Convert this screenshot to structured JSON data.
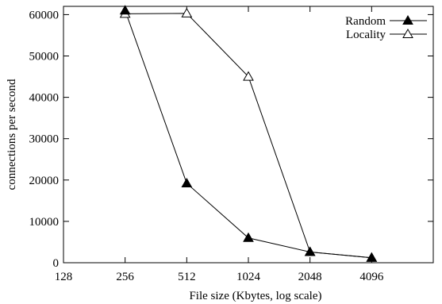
{
  "chart_data": {
    "type": "line",
    "title": "",
    "xlabel": "File size (Kbytes, log scale)",
    "ylabel": "connections per second",
    "x_scale": "log2",
    "xlim": [
      128,
      8192
    ],
    "ylim": [
      0,
      62000
    ],
    "x_ticks": [
      128,
      256,
      512,
      1024,
      2048,
      4096
    ],
    "x_tick_labels": [
      "128",
      "256",
      "512",
      "1024",
      "2048",
      "4096"
    ],
    "y_ticks": [
      0,
      10000,
      20000,
      30000,
      40000,
      50000,
      60000
    ],
    "y_tick_labels": [
      "0",
      "10000",
      "20000",
      "30000",
      "40000",
      "50000",
      "60000"
    ],
    "grid": false,
    "legend_position": "top-right",
    "series": [
      {
        "name": "Random",
        "marker": "filled-triangle",
        "color": "#000000",
        "x": [
          256,
          512,
          1024,
          2048,
          4096
        ],
        "y": [
          61000,
          19200,
          6000,
          2600,
          1200
        ]
      },
      {
        "name": "Locality",
        "marker": "open-triangle",
        "color": "#000000",
        "x": [
          256,
          512,
          1024,
          2048,
          4096
        ],
        "y": [
          60200,
          60300,
          45000,
          2600,
          1200
        ]
      }
    ]
  }
}
